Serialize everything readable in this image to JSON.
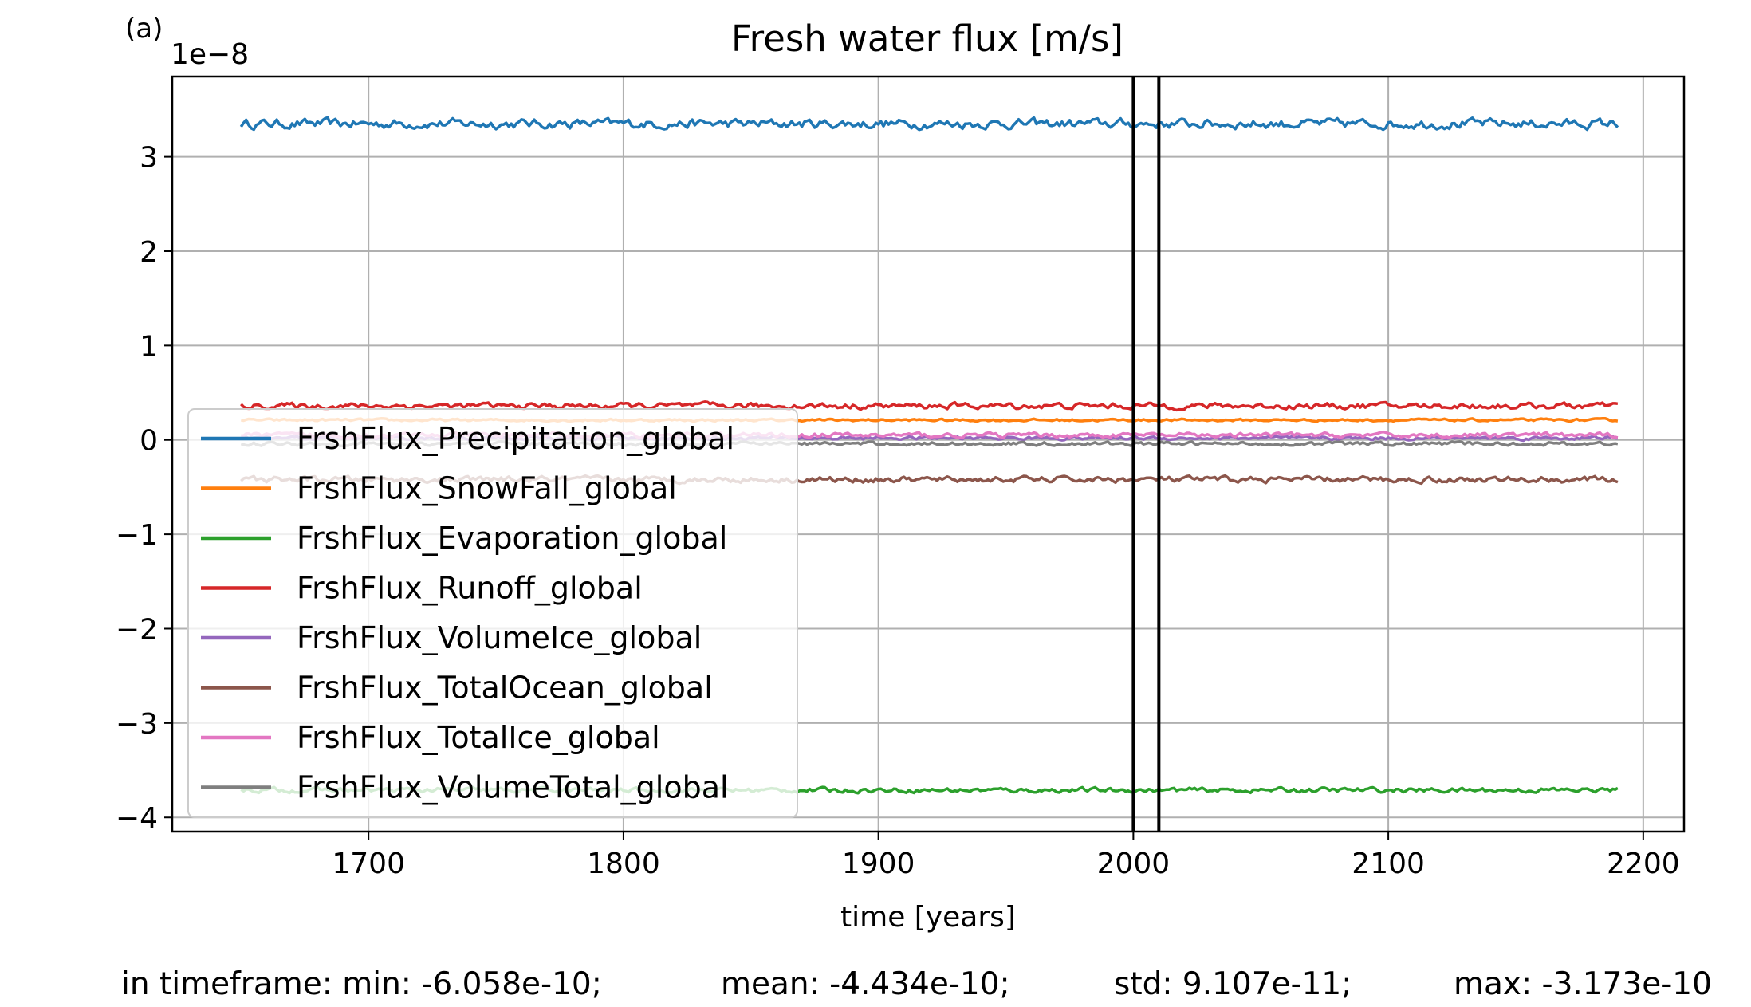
{
  "panel_label": "(a)",
  "chart_data": {
    "type": "line",
    "title": "Fresh water flux [m/s]",
    "xlabel": "time [years]",
    "ylabel": "",
    "y_scale_label": "1e−8",
    "y_multiplier": 1e-08,
    "xlim": [
      1623,
      2216
    ],
    "ylim": [
      -4.15,
      3.85
    ],
    "x_ticks": [
      1700,
      1800,
      1900,
      2000,
      2100,
      2200
    ],
    "y_ticks": [
      -4,
      -3,
      -2,
      -1,
      0,
      1,
      2,
      3
    ],
    "x_tick_labels": [
      "1700",
      "1800",
      "1900",
      "2000",
      "2100",
      "2200"
    ],
    "y_tick_labels": [
      "−4",
      "−3",
      "−2",
      "−1",
      "0",
      "1",
      "2",
      "3"
    ],
    "grid": true,
    "legend_position": "lower-left",
    "x_range": [
      1650,
      2190
    ],
    "vertical_lines": [
      2000,
      2010
    ],
    "series": [
      {
        "name": "FrshFlux_Precipitation_global",
        "color": "#1f77b4",
        "mean": 3.35,
        "noise": 0.04
      },
      {
        "name": "FrshFlux_SnowFall_global",
        "color": "#ff7f0e",
        "mean": 0.21,
        "noise": 0.01
      },
      {
        "name": "FrshFlux_Evaporation_global",
        "color": "#2ca02c",
        "mean": -3.71,
        "noise": 0.02
      },
      {
        "name": "FrshFlux_Runoff_global",
        "color": "#d62728",
        "mean": 0.36,
        "noise": 0.025
      },
      {
        "name": "FrshFlux_VolumeIce_global",
        "color": "#9467bd",
        "mean": 0.02,
        "noise": 0.015
      },
      {
        "name": "FrshFlux_TotalOcean_global",
        "color": "#8c564b",
        "mean": -0.42,
        "noise": 0.025
      },
      {
        "name": "FrshFlux_TotalIce_global",
        "color": "#e377c2",
        "mean": 0.05,
        "noise": 0.02
      },
      {
        "name": "FrshFlux_VolumeTotal_global",
        "color": "#7f7f7f",
        "mean": -0.04,
        "noise": 0.015
      }
    ]
  },
  "stats": {
    "min": "in timeframe: min: -6.058e-10;",
    "mean": "mean: -4.434e-10;",
    "std": "std: 9.107e-11;",
    "max": "max: -3.173e-10"
  }
}
